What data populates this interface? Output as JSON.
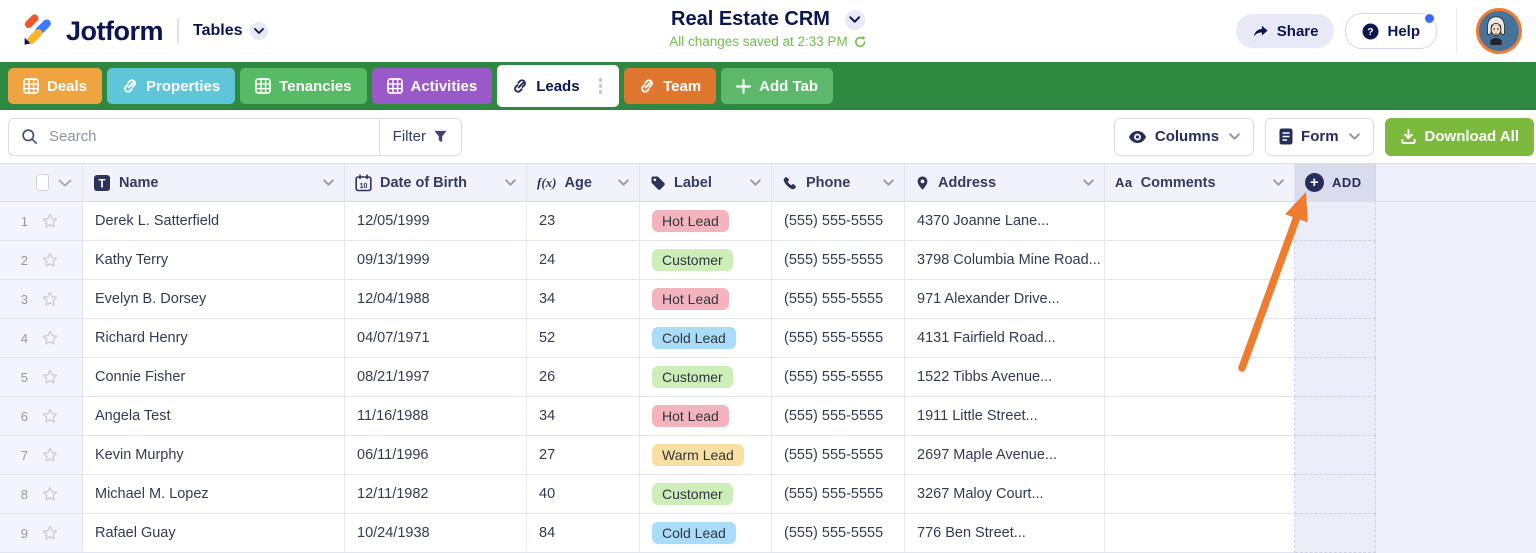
{
  "topbar": {
    "brand": "Jotform",
    "product": "Tables",
    "title": "Real Estate CRM",
    "status": "All changes saved at 2:33 PM",
    "share_label": "Share",
    "help_label": "Help",
    "icons": [
      "jotform-logo",
      "chevron-down-icon",
      "refresh-icon",
      "share-arrow-icon",
      "question-icon",
      "avatar"
    ]
  },
  "tabs": [
    {
      "label": "Deals",
      "color": "#f0a43f",
      "icon": "grid-icon",
      "active": false
    },
    {
      "label": "Properties",
      "color": "#5fc5d8",
      "icon": "link-icon",
      "active": false
    },
    {
      "label": "Tenancies",
      "color": "#58ba64",
      "icon": "grid-icon",
      "active": false
    },
    {
      "label": "Activities",
      "color": "#9a59c8",
      "icon": "grid-icon",
      "active": false
    },
    {
      "label": "Leads",
      "color": "#ffffff",
      "icon": "link-icon",
      "active": true
    },
    {
      "label": "Team",
      "color": "#e0772e",
      "icon": "link-icon",
      "active": false
    },
    {
      "label": "Add Tab",
      "color": "#5cb969",
      "icon": "plus-icon",
      "active": false
    }
  ],
  "toolbar": {
    "search_placeholder": "Search",
    "filter_label": "Filter",
    "columns_label": "Columns",
    "form_label": "Form",
    "download_label": "Download All",
    "download_color": "#7cba3d"
  },
  "table": {
    "columns": [
      {
        "label": "Name",
        "icon": "text-icon"
      },
      {
        "label": "Date of Birth",
        "icon": "calendar-icon"
      },
      {
        "label": "Age",
        "icon": "formula-icon"
      },
      {
        "label": "Label",
        "icon": "tag-icon"
      },
      {
        "label": "Phone",
        "icon": "phone-icon"
      },
      {
        "label": "Address",
        "icon": "pin-icon"
      },
      {
        "label": "Comments",
        "icon": "font-icon"
      }
    ],
    "add_column_label": "ADD",
    "label_colors": {
      "Hot Lead": "#f3b4bd",
      "Customer": "#cdedb9",
      "Cold Lead": "#a8dcf8",
      "Warm Lead": "#f8dfa2"
    },
    "rows": [
      {
        "num": "1",
        "name": "Derek L. Satterfield",
        "dob": "12/05/1999",
        "age": "23",
        "label": "Hot Lead",
        "phone": "(555) 555-5555",
        "address": "4370 Joanne Lane...",
        "comments": ""
      },
      {
        "num": "2",
        "name": "Kathy Terry",
        "dob": "09/13/1999",
        "age": "24",
        "label": "Customer",
        "phone": "(555) 555-5555",
        "address": "3798 Columbia Mine Road...",
        "comments": ""
      },
      {
        "num": "3",
        "name": "Evelyn B. Dorsey",
        "dob": "12/04/1988",
        "age": "34",
        "label": "Hot Lead",
        "phone": "(555) 555-5555",
        "address": "971 Alexander Drive...",
        "comments": ""
      },
      {
        "num": "4",
        "name": "Richard Henry",
        "dob": "04/07/1971",
        "age": "52",
        "label": "Cold Lead",
        "phone": "(555) 555-5555",
        "address": "4131 Fairfield Road...",
        "comments": ""
      },
      {
        "num": "5",
        "name": "Connie Fisher",
        "dob": "08/21/1997",
        "age": "26",
        "label": "Customer",
        "phone": "(555) 555-5555",
        "address": "1522 Tibbs Avenue...",
        "comments": ""
      },
      {
        "num": "6",
        "name": "Angela Test",
        "dob": "11/16/1988",
        "age": "34",
        "label": "Hot Lead",
        "phone": "(555) 555-5555",
        "address": "1911 Little Street...",
        "comments": ""
      },
      {
        "num": "7",
        "name": "Kevin Murphy",
        "dob": "06/11/1996",
        "age": "27",
        "label": "Warm Lead",
        "phone": "(555) 555-5555",
        "address": "2697 Maple Avenue...",
        "comments": ""
      },
      {
        "num": "8",
        "name": "Michael M. Lopez",
        "dob": "12/11/1982",
        "age": "40",
        "label": "Customer",
        "phone": "(555) 555-5555",
        "address": "3267 Maloy Court...",
        "comments": ""
      },
      {
        "num": "9",
        "name": "Rafael Guay",
        "dob": "10/24/1938",
        "age": "84",
        "label": "Cold Lead",
        "phone": "(555) 555-5555",
        "address": "776 Ben Street...",
        "comments": ""
      }
    ]
  },
  "annotation": {
    "arrow_color": "#ee7b2e",
    "arrow_points_to": "ADD column button"
  }
}
